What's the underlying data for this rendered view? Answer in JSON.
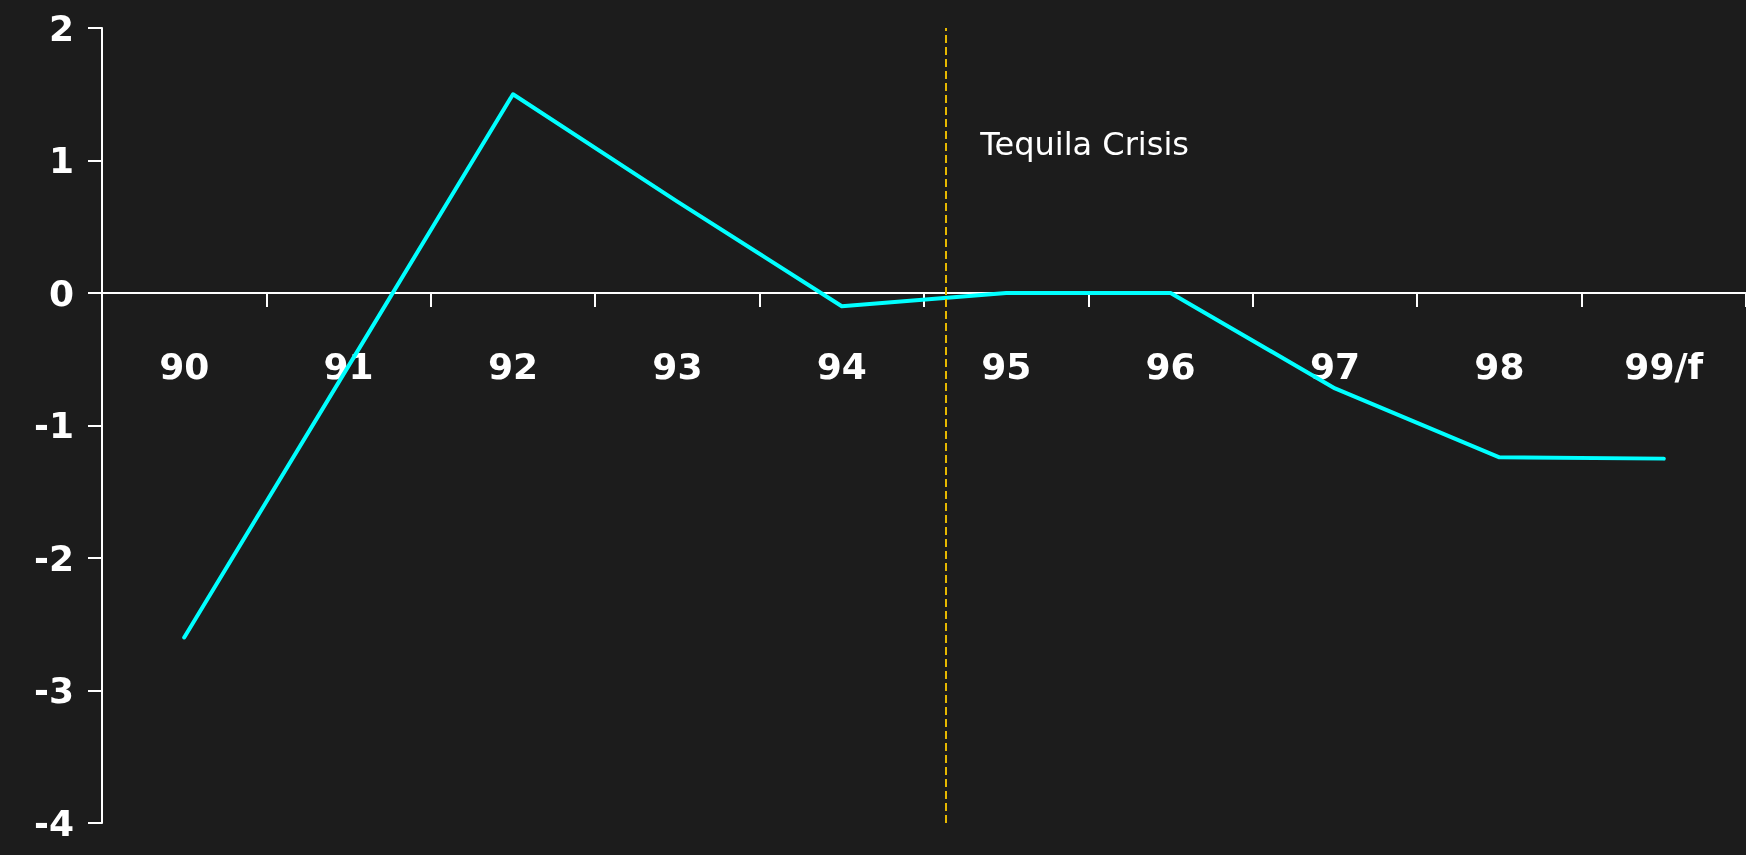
{
  "chart_data": {
    "type": "line",
    "categories": [
      "90",
      "91",
      "92",
      "93",
      "94",
      "95",
      "96",
      "97",
      "98",
      "99/f"
    ],
    "series": [
      {
        "color": "#00ffff",
        "values": [
          -2.6,
          -0.55,
          1.5,
          0.69,
          -0.1,
          0,
          0,
          -0.72,
          -1.24,
          -1.25
        ]
      }
    ],
    "ylim": [
      -4,
      2
    ],
    "yticks": [
      -4,
      -3,
      -2,
      -1,
      0,
      1,
      2
    ],
    "grid": false,
    "marker": "none",
    "line_style": "solid",
    "ref_lines": [
      {
        "axis": "x",
        "value": "95",
        "label": "Tequila Crisis",
        "color": "#e6b800",
        "line_style": "dashed"
      }
    ]
  }
}
